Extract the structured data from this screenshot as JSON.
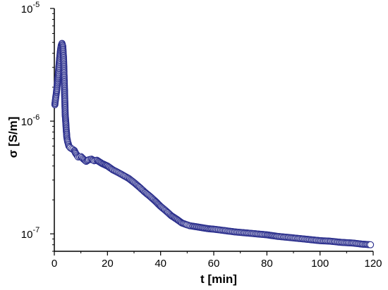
{
  "chart_data": {
    "type": "scatter",
    "title": "",
    "xlabel": "t [min]",
    "ylabel": "σ [S/m]",
    "xlim": [
      0,
      120
    ],
    "ylim": [
      7e-08,
      1e-05
    ],
    "yscale": "log",
    "grid": false,
    "legend": "none",
    "x_ticks": [
      0,
      20,
      40,
      60,
      80,
      100,
      120
    ],
    "x_tick_labels": [
      "0",
      "20",
      "40",
      "60",
      "80",
      "100",
      "120"
    ],
    "y_ticks": [
      1e-07,
      1e-06,
      1e-05
    ],
    "y_tick_labels": [
      {
        "base": "10",
        "exp": "-7"
      },
      {
        "base": "10",
        "exp": "-6"
      },
      {
        "base": "10",
        "exp": "-5"
      }
    ],
    "colors": {
      "marker_edge": "#2a2e8c",
      "marker_fill": "#ffffff",
      "line": "#3a3f9a"
    },
    "series": [
      {
        "name": "",
        "x": [
          0.2,
          0.5,
          0.8,
          1.1,
          1.4,
          1.7,
          2.0,
          2.3,
          2.6,
          2.9,
          3.2,
          3.5,
          3.8,
          4.1,
          4.4,
          4.7,
          5.0,
          5.5,
          6.0,
          6.5,
          7.0,
          7.5,
          8.0,
          8.5,
          9.0,
          10.0,
          11.0,
          12.0,
          13.0,
          14.0,
          15.0,
          16.0,
          17.0,
          18.0,
          19.0,
          20.0,
          22.0,
          24.0,
          26.0,
          28.0,
          30.0,
          32.0,
          34.0,
          36.0,
          38.0,
          40.0,
          42.0,
          44.0,
          46.0,
          48.0,
          50.0,
          51.0,
          52.0,
          54.0,
          56.0,
          58.0,
          60.0,
          64.0,
          68.0,
          72.0,
          76.0,
          80.0,
          84.0,
          88.0,
          92.0,
          96.0,
          100.0,
          104.0,
          108.0,
          112.0,
          116.0,
          119.0
        ],
        "y": [
          1.4e-06,
          1.6e-06,
          1.8e-06,
          2.1e-06,
          2.5e-06,
          3e-06,
          3.6e-06,
          4.2e-06,
          4.7e-06,
          4.9e-06,
          4.6e-06,
          3.5e-06,
          2e-06,
          1.15e-06,
          9e-07,
          7.2e-07,
          6.6e-07,
          6e-07,
          5.8e-07,
          5.7e-07,
          5.6e-07,
          5.5e-07,
          5.2e-07,
          5e-07,
          4.8e-07,
          4.85e-07,
          4.6e-07,
          4.4e-07,
          4.55e-07,
          4.6e-07,
          4.45e-07,
          4.5e-07,
          4.35e-07,
          4.2e-07,
          4.1e-07,
          4e-07,
          3.7e-07,
          3.5e-07,
          3.3e-07,
          3.1e-07,
          2.85e-07,
          2.6e-07,
          2.35e-07,
          2.15e-07,
          1.95e-07,
          1.75e-07,
          1.6e-07,
          1.45e-07,
          1.35e-07,
          1.25e-07,
          1.2e-07,
          1.18e-07,
          1.17e-07,
          1.15e-07,
          1.13e-07,
          1.11e-07,
          1.1e-07,
          1.07e-07,
          1.04e-07,
          1.02e-07,
          1e-07,
          9.8e-08,
          9.5e-08,
          9.3e-08,
          9.1e-08,
          8.9e-08,
          8.7e-08,
          8.6e-08,
          8.4e-08,
          8.3e-08,
          8.1e-08,
          8e-08
        ]
      }
    ]
  }
}
